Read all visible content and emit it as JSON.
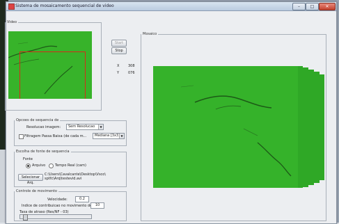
{
  "window": {
    "title": "Sistema de mosaicamento sequencial de video",
    "btn_min": "–",
    "btn_max": "□",
    "btn_close": "✕"
  },
  "video_panel": {
    "legend": "Video",
    "start_label": "Start",
    "stop_label": "Stop",
    "x_label": "X",
    "x_value": "308",
    "y_label": "Y",
    "y_value": "076"
  },
  "mosaic_panel": {
    "legend": "Mosaico"
  },
  "options_panel": {
    "legend": "Opcoes de sequencia de",
    "resolution_label": "Resolucao imagem:",
    "resolution_value": "Sem Resolucao",
    "filter_label": "Filtragem Passa Baixa (de cada m...",
    "filter_value": "Mediana [3x3]",
    "filter_checked": false
  },
  "source_panel": {
    "legend": "Escolha de fonte de sequencia",
    "source_label": "Fonte",
    "radio_file": "Arquivo",
    "radio_file_selected": true,
    "radio_realtime": "Tempo Real (cam)",
    "radio_realtime_selected": false,
    "select_file_label": "Selecionar Arq.",
    "file_path": "C:\\Users\\Cavalcante\\Desktop\\Vsco\\ sptfc\\Arq\\testevid.avi"
  },
  "control_panel": {
    "legend": "Controle de movimento",
    "velocity_label": "Velocidade:",
    "velocity_value": "0.2",
    "scale_label": "Indice de contribuicao no movimento de:",
    "scale_value": "10",
    "rate_label": "Taxa de atraso (Res/NF - 03)"
  },
  "colors": {
    "video_green": "#37b32a",
    "roi_red": "#d62a1a",
    "window_bg": "#eceef1"
  }
}
